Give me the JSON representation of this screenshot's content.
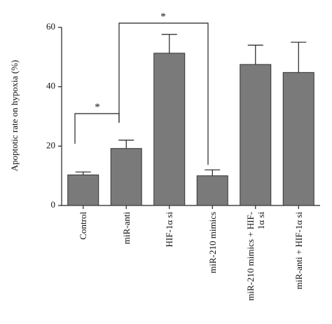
{
  "chart_data": {
    "type": "bar",
    "y_label": "Apoptotic rate on hypoxia (%)",
    "categories": [
      "Control",
      "miR-anti",
      "HIF-1α si",
      "miR-210 mimics",
      "miR-210 mimics + HIF-1α si",
      "miR-anti + HIF-1α si"
    ],
    "values": [
      10.3,
      19.2,
      51.3,
      10.0,
      47.5,
      44.8
    ],
    "errors": [
      1.0,
      2.8,
      6.3,
      2.0,
      6.5,
      10.2
    ],
    "color": "#7a7a7a",
    "ylim": [
      0,
      60
    ],
    "yticks": [
      0,
      20,
      40,
      60
    ],
    "annotations": [
      {
        "label": "*"
      },
      {
        "label": "*"
      }
    ]
  }
}
